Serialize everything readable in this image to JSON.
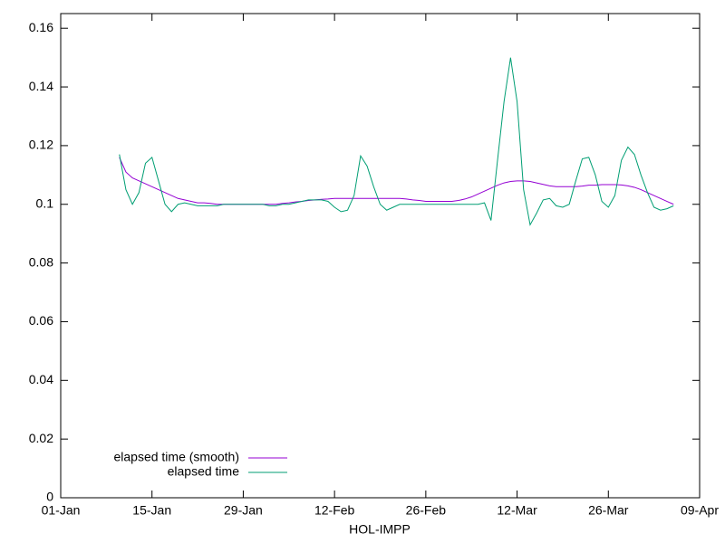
{
  "chart_data": {
    "type": "line",
    "xlabel": "HOL-IMPP",
    "x": [
      "10-Jan",
      "11-Jan",
      "12-Jan",
      "13-Jan",
      "14-Jan",
      "15-Jan",
      "16-Jan",
      "17-Jan",
      "18-Jan",
      "19-Jan",
      "20-Jan",
      "21-Jan",
      "22-Jan",
      "23-Jan",
      "24-Jan",
      "25-Jan",
      "26-Jan",
      "27-Jan",
      "28-Jan",
      "29-Jan",
      "30-Jan",
      "31-Jan",
      "01-Feb",
      "02-Feb",
      "03-Feb",
      "04-Feb",
      "05-Feb",
      "06-Feb",
      "07-Feb",
      "08-Feb",
      "09-Feb",
      "10-Feb",
      "11-Feb",
      "12-Feb",
      "13-Feb",
      "14-Feb",
      "15-Feb",
      "16-Feb",
      "17-Feb",
      "18-Feb",
      "19-Feb",
      "20-Feb",
      "21-Feb",
      "22-Feb",
      "23-Feb",
      "24-Feb",
      "25-Feb",
      "26-Feb",
      "27-Feb",
      "28-Feb",
      "01-Mar",
      "02-Mar",
      "03-Mar",
      "04-Mar",
      "05-Mar",
      "06-Mar",
      "07-Mar",
      "08-Mar",
      "09-Mar",
      "10-Mar",
      "11-Mar",
      "12-Mar",
      "13-Mar",
      "14-Mar",
      "15-Mar",
      "16-Mar",
      "17-Mar",
      "18-Mar",
      "19-Mar",
      "20-Mar",
      "21-Mar",
      "22-Mar",
      "23-Mar",
      "24-Mar",
      "25-Mar",
      "26-Mar",
      "27-Mar",
      "28-Mar",
      "29-Mar",
      "30-Mar",
      "31-Mar",
      "01-Apr",
      "02-Apr",
      "03-Apr",
      "04-Apr",
      "05-Apr"
    ],
    "series": [
      {
        "name": "elapsed time (smooth)",
        "color": "#9400d3",
        "values": [
          0.116,
          0.111,
          0.109,
          0.108,
          0.107,
          0.106,
          0.105,
          0.104,
          0.103,
          0.102,
          0.1015,
          0.101,
          0.1005,
          0.1005,
          0.1003,
          0.1,
          0.1,
          0.1,
          0.1,
          0.1,
          0.1,
          0.1,
          0.1,
          0.1,
          0.1,
          0.1003,
          0.1005,
          0.1008,
          0.101,
          0.1013,
          0.1015,
          0.1017,
          0.1018,
          0.102,
          0.102,
          0.102,
          0.102,
          0.102,
          0.102,
          0.102,
          0.102,
          0.102,
          0.102,
          0.102,
          0.1018,
          0.1015,
          0.1013,
          0.101,
          0.101,
          0.101,
          0.101,
          0.101,
          0.1013,
          0.1018,
          0.1025,
          0.1035,
          0.1045,
          0.1055,
          0.1065,
          0.1073,
          0.1078,
          0.108,
          0.108,
          0.1078,
          0.1073,
          0.1068,
          0.1063,
          0.106,
          0.106,
          0.106,
          0.106,
          0.1062,
          0.1065,
          0.1065,
          0.1067,
          0.1067,
          0.1067,
          0.1066,
          0.1063,
          0.1058,
          0.105,
          0.104,
          0.103,
          0.102,
          0.101,
          0.1
        ]
      },
      {
        "name": "elapsed time",
        "color": "#009e73",
        "values": [
          0.117,
          0.105,
          0.1,
          0.104,
          0.114,
          0.116,
          0.108,
          0.1,
          0.0975,
          0.1,
          0.1005,
          0.1,
          0.0995,
          0.0995,
          0.0995,
          0.0995,
          0.1,
          0.1,
          0.1,
          0.1,
          0.1,
          0.1,
          0.1,
          0.0995,
          0.0995,
          0.1,
          0.1,
          0.1005,
          0.101,
          0.1015,
          0.1015,
          0.1015,
          0.101,
          0.099,
          0.0975,
          0.098,
          0.103,
          0.1165,
          0.113,
          0.106,
          0.1,
          0.098,
          0.099,
          0.1,
          0.1,
          0.1,
          0.1,
          0.1,
          0.1,
          0.1,
          0.1,
          0.1,
          0.1,
          0.1,
          0.1,
          0.1,
          0.1005,
          0.0945,
          0.115,
          0.135,
          0.15,
          0.135,
          0.105,
          0.093,
          0.097,
          0.1015,
          0.102,
          0.0995,
          0.099,
          0.1,
          0.108,
          0.1155,
          0.116,
          0.11,
          0.101,
          0.099,
          0.103,
          0.115,
          0.1195,
          0.117,
          0.11,
          0.104,
          0.099,
          0.098,
          0.0985,
          0.0995
        ]
      }
    ],
    "xlim": [
      "01-Jan",
      "09-Apr"
    ],
    "xticks": [
      "01-Jan",
      "15-Jan",
      "29-Jan",
      "12-Feb",
      "26-Feb",
      "12-Mar",
      "26-Mar",
      "09-Apr"
    ],
    "ylim": [
      0,
      0.165
    ],
    "yticks": [
      0,
      0.02,
      0.04,
      0.06,
      0.08,
      0.1,
      0.12,
      0.14,
      0.16
    ],
    "legend": "bottom-left"
  }
}
